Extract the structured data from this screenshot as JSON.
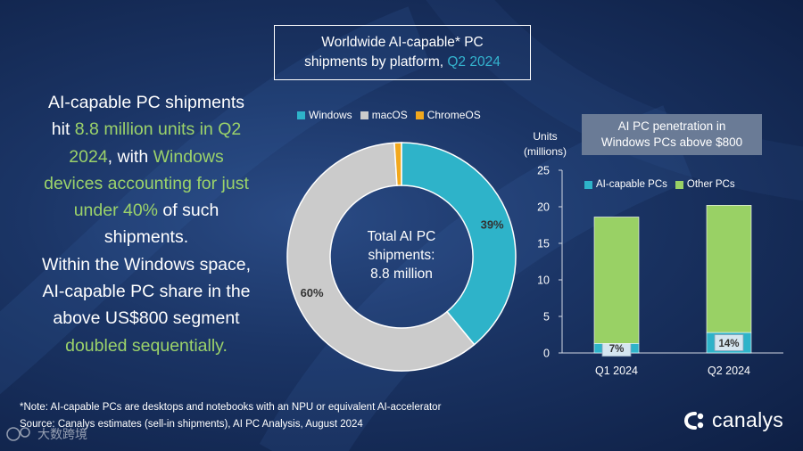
{
  "headline": {
    "l1": "AI-capable PC shipments",
    "l2a": "hit ",
    "l2b": "8.8 million units in Q2",
    "l3a": "2024",
    "l3b": ", with ",
    "l3c": "Windows",
    "l4": "devices accounting for just",
    "l5a": "under 40%",
    "l5b": " of such",
    "l6": "shipments.",
    "l7": "Within the Windows space,",
    "l8": "AI-capable PC share in the",
    "l9": "above US$800 segment",
    "l10": "doubled sequentially."
  },
  "title_box": {
    "line1": "Worldwide AI-capable* PC",
    "line2a": "shipments by platform, ",
    "line2b": "Q2 2024"
  },
  "bar_title": {
    "line1": "AI PC penetration in",
    "line2": "Windows PCs above $800"
  },
  "units_label": {
    "line1": "Units",
    "line2": "(millions)"
  },
  "footnote": {
    "line1": "*Note: AI-capable PCs are desktops and notebooks with an NPU or equivalent AI-accelerator",
    "line2": "Source: Canalys estimates (sell-in shipments), AI PC Analysis, August 2024"
  },
  "logo": {
    "text": "canalys"
  },
  "watermark": {
    "text": "大数跨境"
  },
  "colors": {
    "windows": "#2eb3c9",
    "macos": "#cbcbcb",
    "chromeos": "#f2a81d",
    "ai_capable": "#2eb3c9",
    "other": "#99d165",
    "highlight": "#34b4cf",
    "green_text": "#9bd26a"
  },
  "chart_data": [
    {
      "type": "pie",
      "donut": true,
      "center_label": [
        "Total AI PC",
        "shipments:",
        "8.8 million"
      ],
      "legend_placement": "top",
      "slices": [
        {
          "name": "Windows",
          "value": 39,
          "label": "39%"
        },
        {
          "name": "macOS",
          "value": 60,
          "label": "60%"
        },
        {
          "name": "ChromeOS",
          "value": 1,
          "label": ""
        }
      ]
    },
    {
      "type": "bar",
      "stacked": true,
      "categories": [
        "Q1 2024",
        "Q2 2024"
      ],
      "series": [
        {
          "name": "AI-capable PCs",
          "values": [
            1.3,
            2.8
          ],
          "labels": [
            "7%",
            "14%"
          ]
        },
        {
          "name": "Other PCs",
          "values": [
            17.3,
            17.4
          ]
        }
      ],
      "ylim": [
        0,
        25
      ],
      "yticks": [
        0,
        5,
        10,
        15,
        20,
        25
      ],
      "legend_placement": "top",
      "grid": false
    }
  ]
}
